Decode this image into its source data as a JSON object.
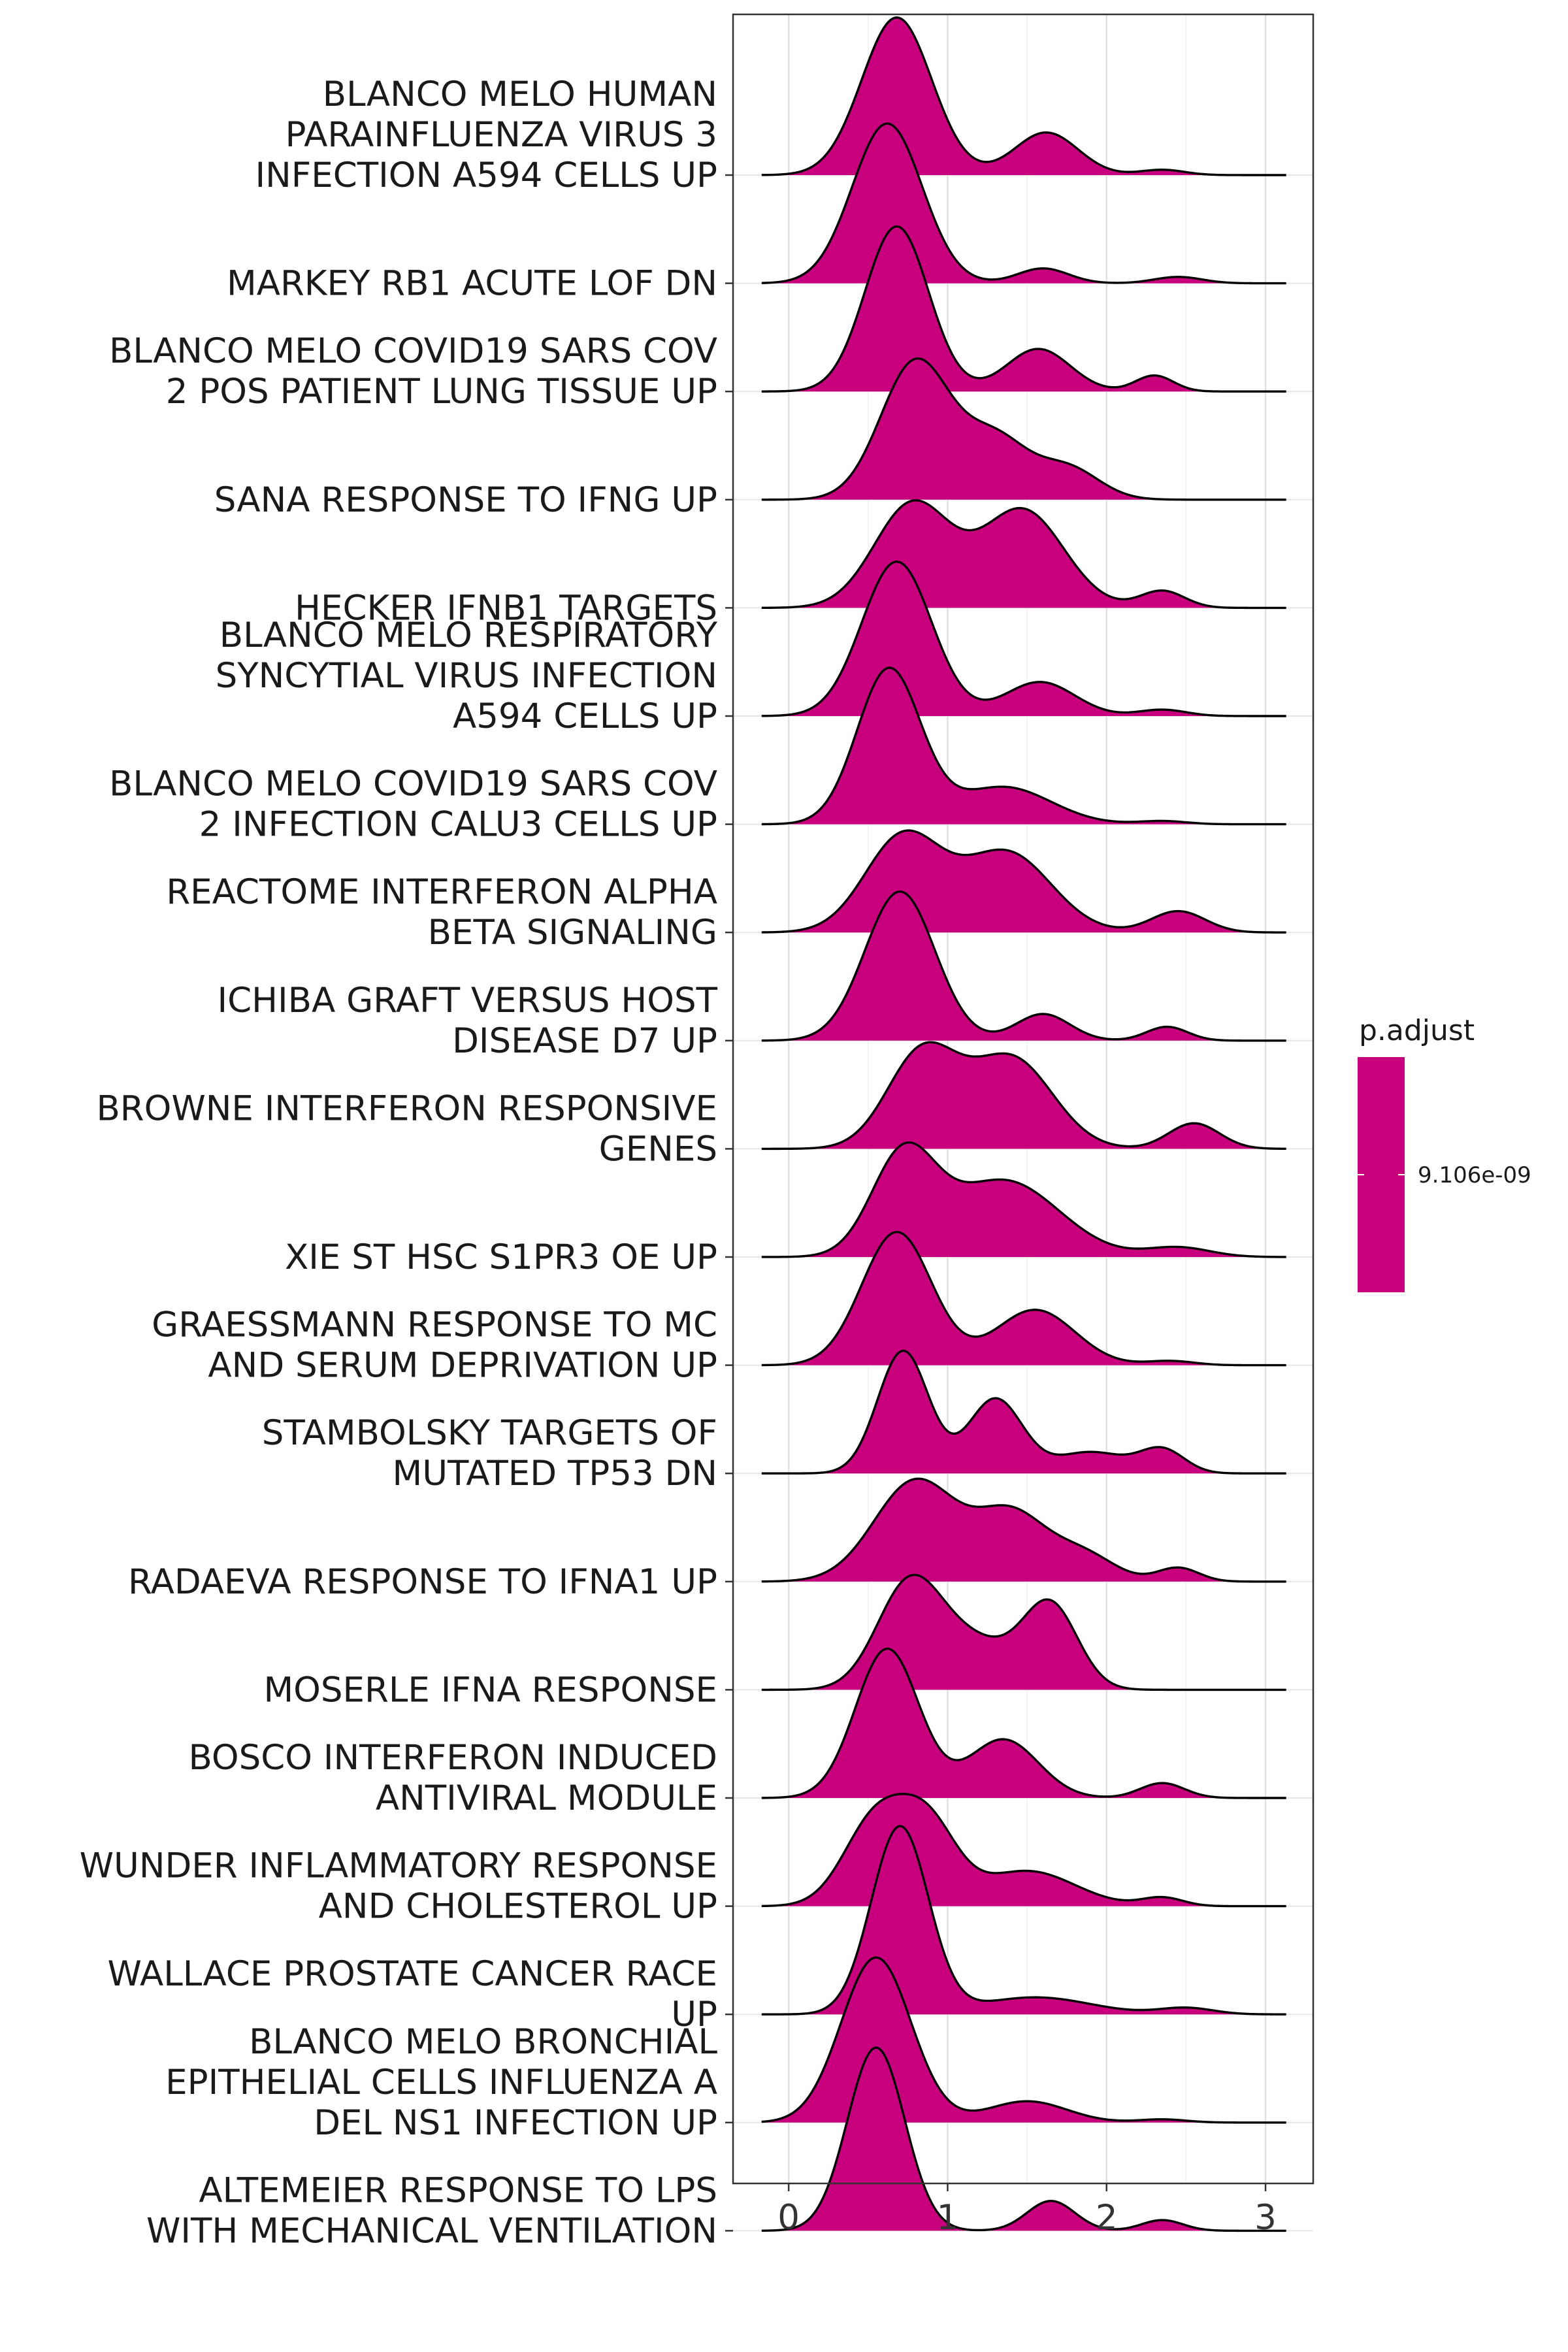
{
  "chart_data": {
    "type": "ridgeline",
    "xlabel": "",
    "ylabel": "",
    "xlim": [
      -0.35,
      3.3
    ],
    "xticks": [
      "0",
      "1",
      "2",
      "3"
    ],
    "fill_color": "#C8007D",
    "grid": true,
    "categories": [
      [
        "BLANCO MELO HUMAN",
        "PARAINFLUENZA VIRUS 3",
        "INFECTION A594 CELLS UP"
      ],
      [
        "MARKEY RB1 ACUTE LOF DN"
      ],
      [
        "BLANCO MELO COVID19 SARS COV",
        "2 POS PATIENT LUNG TISSUE UP"
      ],
      [
        "SANA RESPONSE TO IFNG UP"
      ],
      [
        "HECKER IFNB1 TARGETS"
      ],
      [
        "BLANCO MELO RESPIRATORY",
        "SYNCYTIAL VIRUS INFECTION",
        "A594 CELLS UP"
      ],
      [
        "BLANCO MELO COVID19 SARS COV",
        "2 INFECTION CALU3 CELLS UP"
      ],
      [
        "REACTOME INTERFERON ALPHA",
        "BETA SIGNALING"
      ],
      [
        "ICHIBA GRAFT VERSUS HOST",
        "DISEASE D7 UP"
      ],
      [
        "BROWNE INTERFERON RESPONSIVE",
        "GENES"
      ],
      [
        "XIE ST HSC S1PR3 OE UP"
      ],
      [
        "GRAESSMANN RESPONSE TO MC",
        "AND SERUM DEPRIVATION UP"
      ],
      [
        "STAMBOLSKY TARGETS OF",
        "MUTATED TP53 DN"
      ],
      [
        "RADAEVA RESPONSE TO IFNA1 UP"
      ],
      [
        "MOSERLE IFNA RESPONSE"
      ],
      [
        "BOSCO INTERFERON INDUCED",
        "ANTIVIRAL MODULE"
      ],
      [
        "WUNDER INFLAMMATORY RESPONSE",
        "AND CHOLESTEROL UP"
      ],
      [
        "WALLACE PROSTATE CANCER RACE",
        "UP"
      ],
      [
        "BLANCO MELO BRONCHIAL",
        "EPITHELIAL CELLS INFLUENZA A",
        "DEL NS1 INFECTION UP"
      ],
      [
        "ALTEMEIER RESPONSE TO LPS",
        "WITH MECHANICAL VENTILATION"
      ]
    ],
    "x_range": [
      -0.17,
      3.13
    ],
    "series": [
      {
        "peaks": [
          [
            0.68,
            0.22,
            1.48
          ],
          [
            1.62,
            0.2,
            0.4
          ],
          [
            2.35,
            0.14,
            0.05
          ]
        ]
      },
      {
        "peaks": [
          [
            0.62,
            0.22,
            1.5
          ],
          [
            1.6,
            0.16,
            0.14
          ],
          [
            2.45,
            0.15,
            0.06
          ]
        ]
      },
      {
        "peaks": [
          [
            0.68,
            0.2,
            1.55
          ],
          [
            1.57,
            0.2,
            0.4
          ],
          [
            2.3,
            0.12,
            0.15
          ]
        ]
      },
      {
        "peaks": [
          [
            0.8,
            0.22,
            1.3
          ],
          [
            1.3,
            0.2,
            0.55
          ],
          [
            1.75,
            0.2,
            0.3
          ]
        ]
      },
      {
        "peaks": [
          [
            0.78,
            0.24,
            0.98
          ],
          [
            1.47,
            0.26,
            0.92
          ],
          [
            2.35,
            0.14,
            0.16
          ]
        ]
      },
      {
        "peaks": [
          [
            0.68,
            0.22,
            1.45
          ],
          [
            1.58,
            0.22,
            0.32
          ],
          [
            2.35,
            0.15,
            0.06
          ]
        ]
      },
      {
        "peaks": [
          [
            0.63,
            0.2,
            1.45
          ],
          [
            1.35,
            0.3,
            0.35
          ],
          [
            2.35,
            0.15,
            0.03
          ]
        ]
      },
      {
        "peaks": [
          [
            0.72,
            0.24,
            0.9
          ],
          [
            1.37,
            0.28,
            0.75
          ],
          [
            2.45,
            0.17,
            0.2
          ]
        ]
      },
      {
        "peaks": [
          [
            0.7,
            0.22,
            1.4
          ],
          [
            1.6,
            0.17,
            0.25
          ],
          [
            2.38,
            0.13,
            0.13
          ]
        ]
      },
      {
        "peaks": [
          [
            0.84,
            0.22,
            0.9
          ],
          [
            1.4,
            0.26,
            0.85
          ],
          [
            2.55,
            0.16,
            0.24
          ]
        ]
      },
      {
        "peaks": [
          [
            0.72,
            0.2,
            0.92
          ],
          [
            1.35,
            0.35,
            0.72
          ],
          [
            2.45,
            0.2,
            0.09
          ]
        ]
      },
      {
        "peaks": [
          [
            0.68,
            0.22,
            1.25
          ],
          [
            1.55,
            0.25,
            0.52
          ],
          [
            2.4,
            0.15,
            0.04
          ]
        ]
      },
      {
        "peaks": [
          [
            0.72,
            0.16,
            1.15
          ],
          [
            1.3,
            0.17,
            0.7
          ],
          [
            1.9,
            0.22,
            0.2
          ],
          [
            2.35,
            0.14,
            0.22
          ]
        ]
      },
      {
        "peaks": [
          [
            0.8,
            0.26,
            0.95
          ],
          [
            1.4,
            0.22,
            0.62
          ],
          [
            1.85,
            0.2,
            0.25
          ],
          [
            2.45,
            0.13,
            0.13
          ]
        ]
      },
      {
        "peaks": [
          [
            0.75,
            0.2,
            0.9
          ],
          [
            1.15,
            0.28,
            0.45
          ],
          [
            1.65,
            0.17,
            0.75
          ]
        ]
      },
      {
        "peaks": [
          [
            0.62,
            0.2,
            1.4
          ],
          [
            1.35,
            0.22,
            0.55
          ],
          [
            2.35,
            0.14,
            0.14
          ]
        ]
      },
      {
        "peaks": [
          [
            0.55,
            0.2,
            0.82
          ],
          [
            0.88,
            0.18,
            0.7
          ],
          [
            1.5,
            0.3,
            0.33
          ],
          [
            2.35,
            0.13,
            0.08
          ]
        ]
      },
      {
        "peaks": [
          [
            0.7,
            0.18,
            1.76
          ],
          [
            1.55,
            0.35,
            0.16
          ],
          [
            2.5,
            0.17,
            0.06
          ]
        ]
      },
      {
        "peaks": [
          [
            0.55,
            0.22,
            1.55
          ],
          [
            1.5,
            0.25,
            0.2
          ],
          [
            2.35,
            0.15,
            0.03
          ]
        ]
      },
      {
        "peaks": [
          [
            0.55,
            0.18,
            1.72
          ],
          [
            1.65,
            0.15,
            0.28
          ],
          [
            2.35,
            0.13,
            0.1
          ]
        ]
      }
    ]
  },
  "legend": {
    "title": "p.adjust",
    "tick_label": "9.106e-09"
  }
}
